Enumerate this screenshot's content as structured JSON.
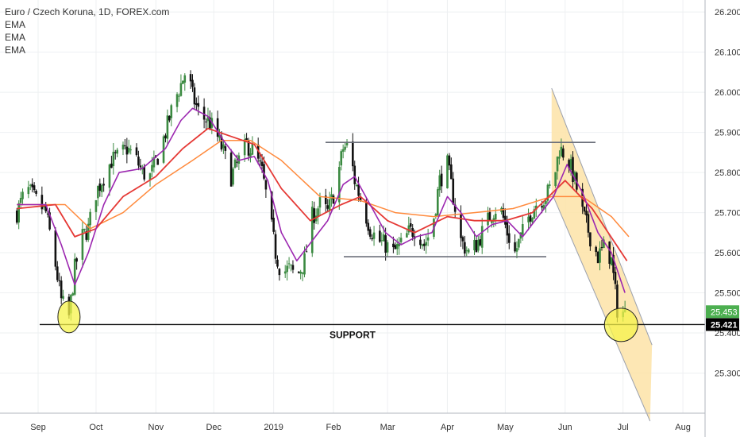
{
  "chart_data": {
    "type": "candlestick",
    "title": "Euro / Czech Koruna, 1D, FOREX.com",
    "indicators": [
      "EMA",
      "EMA",
      "EMA"
    ],
    "x_tick_labels": [
      "Sep",
      "Oct",
      "Nov",
      "Dec",
      "2019",
      "Feb",
      "Mar",
      "Apr",
      "May",
      "Jun",
      "Jul",
      "Aug"
    ],
    "y_tick_labels": [
      "26.200",
      "26.100",
      "26.000",
      "25.900",
      "25.800",
      "25.700",
      "25.600",
      "25.500",
      "25.400",
      "25.300"
    ],
    "ylim": [
      25.2,
      26.23
    ],
    "grid": true,
    "last_price": 25.453,
    "last_price_label": "25.453",
    "support_price": 25.421,
    "support_price_label": "25.421",
    "annotations": {
      "support_text": "SUPPORT",
      "range_top": 25.875,
      "range_bottom": 25.59
    },
    "price_path": [
      [
        "2018-08-21",
        25.7
      ],
      [
        "2018-08-26",
        25.76
      ],
      [
        "2018-08-31",
        25.73
      ],
      [
        "2018-09-05",
        25.7
      ],
      [
        "2018-09-09",
        25.6
      ],
      [
        "2018-09-13",
        25.48
      ],
      [
        "2018-09-17",
        25.44
      ],
      [
        "2018-09-20",
        25.56
      ],
      [
        "2018-09-24",
        25.64
      ],
      [
        "2018-09-27",
        25.66
      ],
      [
        "2018-10-01",
        25.75
      ],
      [
        "2018-10-05",
        25.79
      ],
      [
        "2018-10-09",
        25.83
      ],
      [
        "2018-10-13",
        25.84
      ],
      [
        "2018-10-17",
        25.86
      ],
      [
        "2018-10-21",
        25.84
      ],
      [
        "2018-10-25",
        25.8
      ],
      [
        "2018-10-29",
        25.79
      ],
      [
        "2018-11-02",
        25.84
      ],
      [
        "2018-11-06",
        25.9
      ],
      [
        "2018-11-10",
        25.97
      ],
      [
        "2018-11-14",
        26.02
      ],
      [
        "2018-11-17",
        26.06
      ],
      [
        "2018-11-20",
        25.99
      ],
      [
        "2018-11-24",
        25.94
      ],
      [
        "2018-11-28",
        25.93
      ],
      [
        "2018-12-02",
        25.9
      ],
      [
        "2018-12-06",
        25.85
      ],
      [
        "2018-12-10",
        25.79
      ],
      [
        "2018-12-14",
        25.83
      ],
      [
        "2018-12-18",
        25.87
      ],
      [
        "2018-12-22",
        25.85
      ],
      [
        "2018-12-26",
        25.8
      ],
      [
        "2018-12-29",
        25.72
      ],
      [
        "2019-01-02",
        25.6
      ],
      [
        "2019-01-05",
        25.55
      ],
      [
        "2019-01-09",
        25.56
      ],
      [
        "2019-01-13",
        25.54
      ],
      [
        "2019-01-17",
        25.58
      ],
      [
        "2019-01-21",
        25.69
      ],
      [
        "2019-01-25",
        25.72
      ],
      [
        "2019-01-29",
        25.7
      ],
      [
        "2019-02-02",
        25.76
      ],
      [
        "2019-02-06",
        25.86
      ],
      [
        "2019-02-09",
        25.87
      ],
      [
        "2019-02-12",
        25.78
      ],
      [
        "2019-02-16",
        25.72
      ],
      [
        "2019-02-20",
        25.66
      ],
      [
        "2019-02-24",
        25.63
      ],
      [
        "2019-02-28",
        25.62
      ],
      [
        "2019-03-04",
        25.6
      ],
      [
        "2019-03-08",
        25.62
      ],
      [
        "2019-03-12",
        25.65
      ],
      [
        "2019-03-16",
        25.66
      ],
      [
        "2019-03-20",
        25.62
      ],
      [
        "2019-03-24",
        25.66
      ],
      [
        "2019-03-28",
        25.78
      ],
      [
        "2019-04-01",
        25.82
      ],
      [
        "2019-04-04",
        25.74
      ],
      [
        "2019-04-08",
        25.63
      ],
      [
        "2019-04-12",
        25.6
      ],
      [
        "2019-04-16",
        25.62
      ],
      [
        "2019-04-20",
        25.66
      ],
      [
        "2019-04-24",
        25.7
      ],
      [
        "2019-04-28",
        25.72
      ],
      [
        "2019-05-02",
        25.65
      ],
      [
        "2019-05-06",
        25.6
      ],
      [
        "2019-05-10",
        25.65
      ],
      [
        "2019-05-14",
        25.7
      ],
      [
        "2019-05-18",
        25.73
      ],
      [
        "2019-05-22",
        25.74
      ],
      [
        "2019-05-26",
        25.78
      ],
      [
        "2019-05-29",
        25.86
      ],
      [
        "2019-06-02",
        25.84
      ],
      [
        "2019-06-06",
        25.78
      ],
      [
        "2019-06-10",
        25.7
      ],
      [
        "2019-06-14",
        25.64
      ],
      [
        "2019-06-18",
        25.59
      ],
      [
        "2019-06-22",
        25.62
      ],
      [
        "2019-06-25",
        25.58
      ],
      [
        "2019-06-28",
        25.46
      ],
      [
        "2019-07-02",
        25.45
      ]
    ],
    "ema_fast_path": [
      [
        "2018-08-21",
        25.72
      ],
      [
        "2018-09-05",
        25.72
      ],
      [
        "2018-09-13",
        25.62
      ],
      [
        "2018-09-20",
        25.52
      ],
      [
        "2018-09-27",
        25.6
      ],
      [
        "2018-10-05",
        25.72
      ],
      [
        "2018-10-13",
        25.8
      ],
      [
        "2018-10-25",
        25.81
      ],
      [
        "2018-11-06",
        25.86
      ],
      [
        "2018-11-14",
        25.93
      ],
      [
        "2018-11-20",
        25.96
      ],
      [
        "2018-11-28",
        25.94
      ],
      [
        "2018-12-06",
        25.88
      ],
      [
        "2018-12-14",
        25.83
      ],
      [
        "2018-12-22",
        25.84
      ],
      [
        "2018-12-29",
        25.78
      ],
      [
        "2019-01-05",
        25.65
      ],
      [
        "2019-01-13",
        25.58
      ],
      [
        "2019-01-21",
        25.63
      ],
      [
        "2019-01-29",
        25.68
      ],
      [
        "2019-02-06",
        25.77
      ],
      [
        "2019-02-12",
        25.79
      ],
      [
        "2019-02-20",
        25.72
      ],
      [
        "2019-02-28",
        25.65
      ],
      [
        "2019-03-08",
        25.62
      ],
      [
        "2019-03-16",
        25.64
      ],
      [
        "2019-03-24",
        25.65
      ],
      [
        "2019-04-01",
        25.74
      ],
      [
        "2019-04-08",
        25.7
      ],
      [
        "2019-04-16",
        25.64
      ],
      [
        "2019-04-24",
        25.67
      ],
      [
        "2019-05-02",
        25.68
      ],
      [
        "2019-05-10",
        25.64
      ],
      [
        "2019-05-18",
        25.69
      ],
      [
        "2019-05-26",
        25.74
      ],
      [
        "2019-06-02",
        25.82
      ],
      [
        "2019-06-10",
        25.75
      ],
      [
        "2019-06-18",
        25.65
      ],
      [
        "2019-06-25",
        25.6
      ],
      [
        "2019-07-02",
        25.5
      ]
    ],
    "ema_mid_path": [
      [
        "2018-08-21",
        25.71
      ],
      [
        "2018-09-10",
        25.72
      ],
      [
        "2018-09-20",
        25.64
      ],
      [
        "2018-10-01",
        25.66
      ],
      [
        "2018-10-15",
        25.74
      ],
      [
        "2018-11-01",
        25.79
      ],
      [
        "2018-11-15",
        25.86
      ],
      [
        "2018-11-28",
        25.91
      ],
      [
        "2018-12-10",
        25.89
      ],
      [
        "2018-12-22",
        25.87
      ],
      [
        "2019-01-05",
        25.76
      ],
      [
        "2019-01-20",
        25.68
      ],
      [
        "2019-02-05",
        25.72
      ],
      [
        "2019-02-15",
        25.74
      ],
      [
        "2019-03-01",
        25.68
      ],
      [
        "2019-03-15",
        25.65
      ],
      [
        "2019-04-01",
        25.69
      ],
      [
        "2019-04-15",
        25.68
      ],
      [
        "2019-05-01",
        25.68
      ],
      [
        "2019-05-15",
        25.7
      ],
      [
        "2019-06-01",
        25.78
      ],
      [
        "2019-06-15",
        25.71
      ],
      [
        "2019-07-03",
        25.58
      ]
    ],
    "ema_slow_path": [
      [
        "2018-08-21",
        25.72
      ],
      [
        "2018-09-15",
        25.72
      ],
      [
        "2018-09-28",
        25.66
      ],
      [
        "2018-10-15",
        25.7
      ],
      [
        "2018-11-01",
        25.77
      ],
      [
        "2018-11-20",
        25.83
      ],
      [
        "2018-12-05",
        25.88
      ],
      [
        "2018-12-20",
        25.88
      ],
      [
        "2019-01-05",
        25.83
      ],
      [
        "2019-01-25",
        25.74
      ],
      [
        "2019-02-15",
        25.73
      ],
      [
        "2019-03-05",
        25.7
      ],
      [
        "2019-03-25",
        25.69
      ],
      [
        "2019-04-15",
        25.7
      ],
      [
        "2019-05-05",
        25.71
      ],
      [
        "2019-05-25",
        25.74
      ],
      [
        "2019-06-10",
        25.74
      ],
      [
        "2019-06-25",
        25.69
      ],
      [
        "2019-07-04",
        25.64
      ]
    ],
    "channel": {
      "upper_start": [
        "2019-05-25",
        26.01
      ],
      "upper_end": [
        "2019-07-16",
        25.37
      ],
      "lower_start": [
        "2019-05-25",
        25.75
      ],
      "lower_end": [
        "2019-07-15",
        25.18
      ]
    },
    "highlight_circles": [
      {
        "date": "2018-09-17",
        "price": 25.44
      },
      {
        "date": "2019-06-30",
        "price": 25.42
      }
    ],
    "colors": {
      "up_candle": "#3b8a41",
      "down_candle": "#111111",
      "ema_fast": "#9c27b0",
      "ema_mid": "#e53935",
      "ema_slow": "#ff8a3d",
      "channel_fill": "#fde3a7",
      "highlight_fill": "#f5f34a",
      "last_price_bg": "#4caf50",
      "support_bg": "#000000",
      "grid": "#eef0f2"
    }
  }
}
